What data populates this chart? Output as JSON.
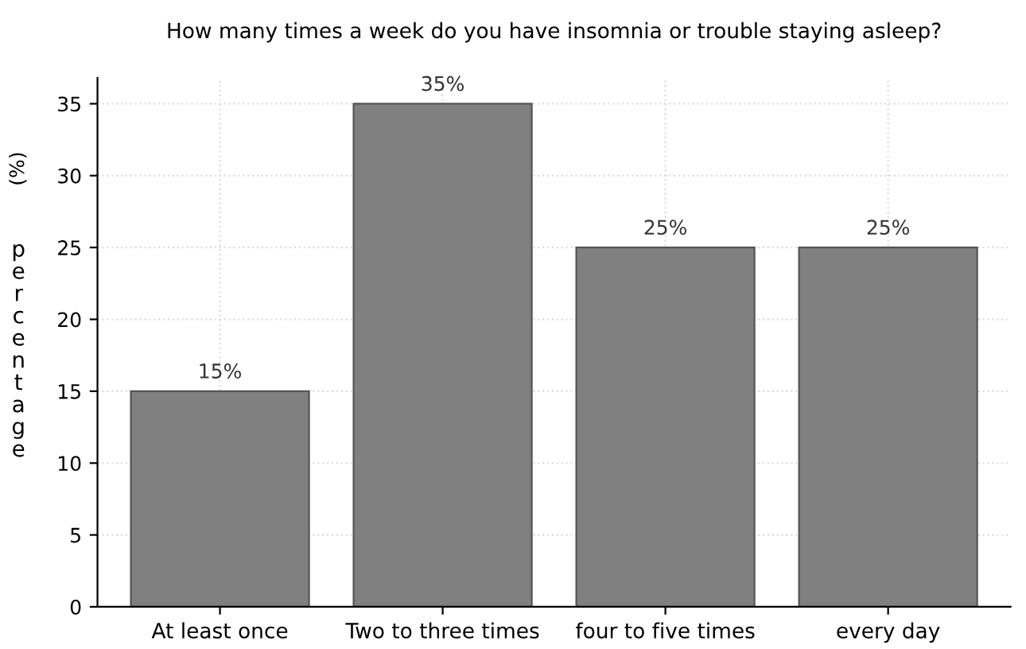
{
  "chart_data": {
    "type": "bar",
    "title": "How many times a week do you have insomnia or trouble staying asleep?",
    "ylabel": "percentage (%)",
    "categories": [
      "At least once",
      "Two to three times",
      "four to five times",
      "every day"
    ],
    "values": [
      15,
      35,
      25,
      25
    ],
    "value_labels": [
      "15%",
      "35%",
      "25%",
      "25%"
    ],
    "color": "#808080",
    "ylim": [
      0,
      36.8
    ],
    "yticks": [
      0,
      5,
      10,
      15,
      20,
      25,
      30,
      35
    ],
    "grid": true
  }
}
